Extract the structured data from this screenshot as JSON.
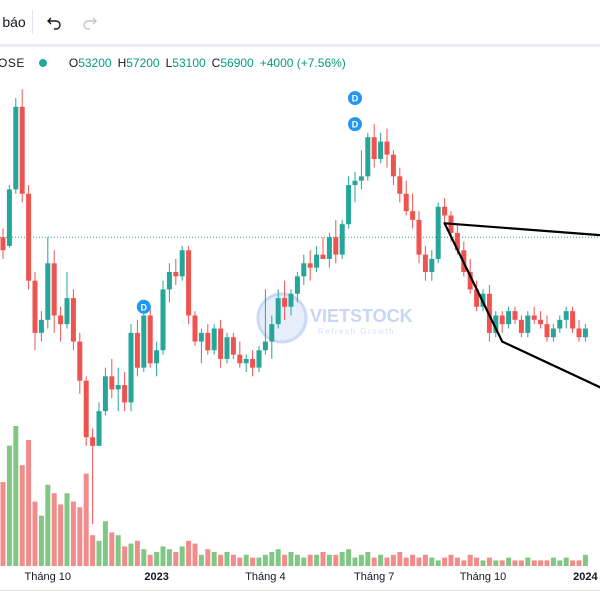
{
  "toolbar": {
    "title_fragment": "báo",
    "undo_icon": "undo-icon",
    "redo_icon": "redo-icon"
  },
  "legend": {
    "symbol_fragment": "OSE",
    "open_label": "O",
    "open_value": "53200",
    "high_label": "H",
    "high_value": "57200",
    "low_label": "L",
    "low_value": "53100",
    "close_label": "C",
    "close_value": "56900",
    "change": "+4000 (+7.56%)"
  },
  "watermark": {
    "brand": "VIETSTOCK",
    "tagline": "Refresh Growth"
  },
  "colors": {
    "up": "#26a69a",
    "down": "#ef5350",
    "vol_up": "#81c784",
    "vol_down": "#f28b8b",
    "dividend": "#2196f3"
  },
  "chart_data": {
    "type": "candlestick",
    "x_tick_labels": [
      {
        "label": "Tháng 10",
        "index": 7,
        "bold": false
      },
      {
        "label": "2023",
        "index": 24,
        "bold": true
      },
      {
        "label": "Tháng 4",
        "index": 41,
        "bold": false
      },
      {
        "label": "Tháng 7",
        "index": 58,
        "bold": false
      },
      {
        "label": "Tháng 10",
        "index": 75,
        "bold": false
      },
      {
        "label": "2024",
        "index": 91,
        "bold": true
      }
    ],
    "price_range": [
      24000,
      70000
    ],
    "reference_price": 51000,
    "dividend_markers": [
      {
        "index": 22,
        "price": 43000,
        "label": "D"
      },
      {
        "index": 55,
        "price": 64000,
        "label": "D"
      },
      {
        "index": 55,
        "price": 67000,
        "label": "D"
      }
    ],
    "trendlines": [
      {
        "from": [
          69,
          52600
        ],
        "to": [
          94,
          51200
        ]
      },
      {
        "from": [
          69,
          52600
        ],
        "to": [
          78,
          39000
        ]
      },
      {
        "from": [
          78,
          39000
        ],
        "to": [
          94,
          33500
        ]
      }
    ],
    "candles": [
      [
        51000,
        52000,
        48500,
        49500,
        300
      ],
      [
        50000,
        57000,
        49800,
        56500,
        430
      ],
      [
        56500,
        67000,
        56000,
        66000,
        500
      ],
      [
        66000,
        68000,
        55000,
        56000,
        360
      ],
      [
        56000,
        57000,
        45000,
        46000,
        450
      ],
      [
        46000,
        47000,
        38000,
        40000,
        230
      ],
      [
        40000,
        42500,
        39000,
        41500,
        180
      ],
      [
        41500,
        51000,
        40500,
        48000,
        290
      ],
      [
        48000,
        49500,
        40000,
        42000,
        260
      ],
      [
        42000,
        43000,
        39000,
        41000,
        220
      ],
      [
        41000,
        47000,
        40500,
        44000,
        260
      ],
      [
        44000,
        45000,
        38000,
        39000,
        230
      ],
      [
        39000,
        40000,
        33000,
        34500,
        210
      ],
      [
        34500,
        35000,
        27000,
        28000,
        330
      ],
      [
        28000,
        29000,
        18000,
        27000,
        110
      ],
      [
        27000,
        32000,
        27000,
        31000,
        90
      ],
      [
        31000,
        36000,
        30500,
        35000,
        160
      ],
      [
        35000,
        37000,
        32500,
        33500,
        120
      ],
      [
        33500,
        36000,
        31000,
        34000,
        110
      ],
      [
        34000,
        35500,
        31000,
        32000,
        70
      ],
      [
        32000,
        41000,
        31000,
        40000,
        80
      ],
      [
        40000,
        41500,
        35000,
        36000,
        90
      ],
      [
        36000,
        43000,
        35500,
        42000,
        60
      ],
      [
        42000,
        43000,
        36000,
        36500,
        40
      ],
      [
        36500,
        39000,
        35000,
        38000,
        50
      ],
      [
        38000,
        46000,
        37500,
        45000,
        70
      ],
      [
        45000,
        48000,
        43500,
        47000,
        60
      ],
      [
        47000,
        48500,
        45500,
        46500,
        50
      ],
      [
        46500,
        50000,
        46000,
        49500,
        70
      ],
      [
        49500,
        50000,
        41000,
        42000,
        90
      ],
      [
        42000,
        42500,
        38500,
        39000,
        80
      ],
      [
        39000,
        40500,
        36500,
        40000,
        40
      ],
      [
        40000,
        41000,
        37500,
        38000,
        60
      ],
      [
        38000,
        41000,
        37500,
        40500,
        50
      ],
      [
        40500,
        41500,
        36000,
        37000,
        40
      ],
      [
        37000,
        40000,
        36500,
        39500,
        50
      ],
      [
        39500,
        40000,
        37000,
        37500,
        40
      ],
      [
        37500,
        39000,
        36000,
        36500,
        30
      ],
      [
        36500,
        37500,
        35500,
        37000,
        40
      ],
      [
        37000,
        38000,
        35000,
        36000,
        30
      ],
      [
        36000,
        38500,
        35500,
        38000,
        30
      ],
      [
        38000,
        45000,
        37500,
        39000,
        40
      ],
      [
        39000,
        42000,
        37000,
        41000,
        50
      ],
      [
        41000,
        45000,
        40500,
        44000,
        60
      ],
      [
        44000,
        46000,
        41500,
        43000,
        40
      ],
      [
        43000,
        45000,
        42000,
        44500,
        50
      ],
      [
        44500,
        47000,
        43500,
        46500,
        40
      ],
      [
        46500,
        49000,
        45500,
        48000,
        30
      ],
      [
        48000,
        49500,
        46000,
        47500,
        40
      ],
      [
        47500,
        50000,
        47000,
        49000,
        40
      ],
      [
        49000,
        51000,
        48500,
        48500,
        50
      ],
      [
        48500,
        51500,
        47500,
        51000,
        40
      ],
      [
        51000,
        53000,
        48000,
        49000,
        40
      ],
      [
        49000,
        53000,
        48500,
        52500,
        50
      ],
      [
        52500,
        58000,
        52000,
        57000,
        60
      ],
      [
        57000,
        58500,
        55000,
        57500,
        30
      ],
      [
        57500,
        61000,
        56500,
        58000,
        40
      ],
      [
        58000,
        63000,
        57500,
        62500,
        50
      ],
      [
        62500,
        64000,
        59000,
        60000,
        30
      ],
      [
        60000,
        63000,
        59500,
        62000,
        40
      ],
      [
        62000,
        63500,
        59000,
        60500,
        30
      ],
      [
        60500,
        61000,
        57000,
        58000,
        40
      ],
      [
        58000,
        59000,
        55000,
        56000,
        50
      ],
      [
        56000,
        57500,
        53500,
        54000,
        30
      ],
      [
        54000,
        56000,
        52000,
        53000,
        40
      ],
      [
        53000,
        54000,
        48000,
        49000,
        30
      ],
      [
        49000,
        50000,
        46000,
        47000,
        40
      ],
      [
        47000,
        49500,
        46000,
        48500,
        30
      ],
      [
        48500,
        55000,
        48000,
        54500,
        20
      ],
      [
        54500,
        55500,
        52500,
        53500,
        30
      ],
      [
        53500,
        54000,
        50500,
        51500,
        40
      ],
      [
        51500,
        52500,
        49000,
        49500,
        30
      ],
      [
        49500,
        50500,
        46500,
        47000,
        20
      ],
      [
        47000,
        48500,
        44500,
        45000,
        40
      ],
      [
        45000,
        46000,
        42500,
        43000,
        30
      ],
      [
        43000,
        45000,
        42500,
        44500,
        20
      ],
      [
        44500,
        45500,
        39000,
        40000,
        30
      ],
      [
        40000,
        42500,
        39500,
        42000,
        20
      ],
      [
        42000,
        42500,
        40000,
        41000,
        20
      ],
      [
        41000,
        43000,
        40500,
        42500,
        30
      ],
      [
        42500,
        43000,
        41000,
        41500,
        20
      ],
      [
        41500,
        42000,
        39500,
        40000,
        20
      ],
      [
        40000,
        42500,
        39500,
        42000,
        30
      ],
      [
        42000,
        43000,
        41000,
        41500,
        20
      ],
      [
        41500,
        42500,
        40500,
        41000,
        20
      ],
      [
        41000,
        42000,
        39000,
        39500,
        20
      ],
      [
        39500,
        41000,
        39000,
        40500,
        30
      ],
      [
        40500,
        42000,
        40000,
        41500,
        20
      ],
      [
        41500,
        43000,
        40500,
        42500,
        30
      ],
      [
        42500,
        43000,
        40000,
        40500,
        20
      ],
      [
        40500,
        41500,
        39000,
        39500,
        20
      ],
      [
        39500,
        41000,
        39000,
        40500,
        40
      ]
    ]
  }
}
